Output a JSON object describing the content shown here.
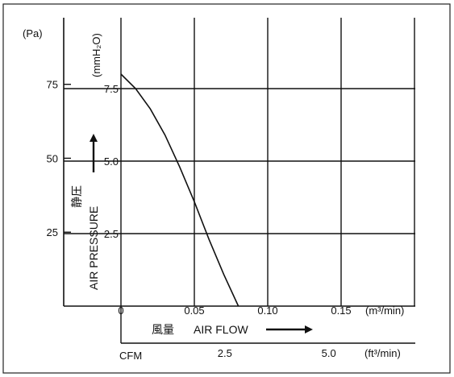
{
  "chart_data": {
    "type": "line",
    "x_unit_primary": "(m³/min)",
    "x_unit_secondary": "(ft³/min)",
    "secondary_axis_label": "CFM",
    "y_unit_primary": "(Pa)",
    "y_unit_secondary": "(mmH₂O)",
    "xlabel_jp": "風量",
    "xlabel": "AIR FLOW",
    "ylabel_jp": "静圧",
    "ylabel": "AIR PRESSURE",
    "x_ticks_primary": [
      "0",
      "0.05",
      "0.10",
      "0.15"
    ],
    "x_ticks_secondary": [
      "2.5",
      "5.0"
    ],
    "y_ticks_primary": [
      "25",
      "50",
      "75"
    ],
    "y_ticks_secondary": [
      "2.5",
      "5.0",
      "7.5"
    ],
    "xlim": [
      0,
      0.2
    ],
    "ylim_mmH2O": [
      0,
      10
    ],
    "grid": true,
    "series": [
      {
        "x": [
          0,
          0.01,
          0.02,
          0.03,
          0.04,
          0.05,
          0.06,
          0.07,
          0.08
        ],
        "y": [
          8.0,
          7.5,
          6.8,
          5.9,
          4.8,
          3.6,
          2.3,
          1.1,
          0.0
        ]
      }
    ]
  }
}
